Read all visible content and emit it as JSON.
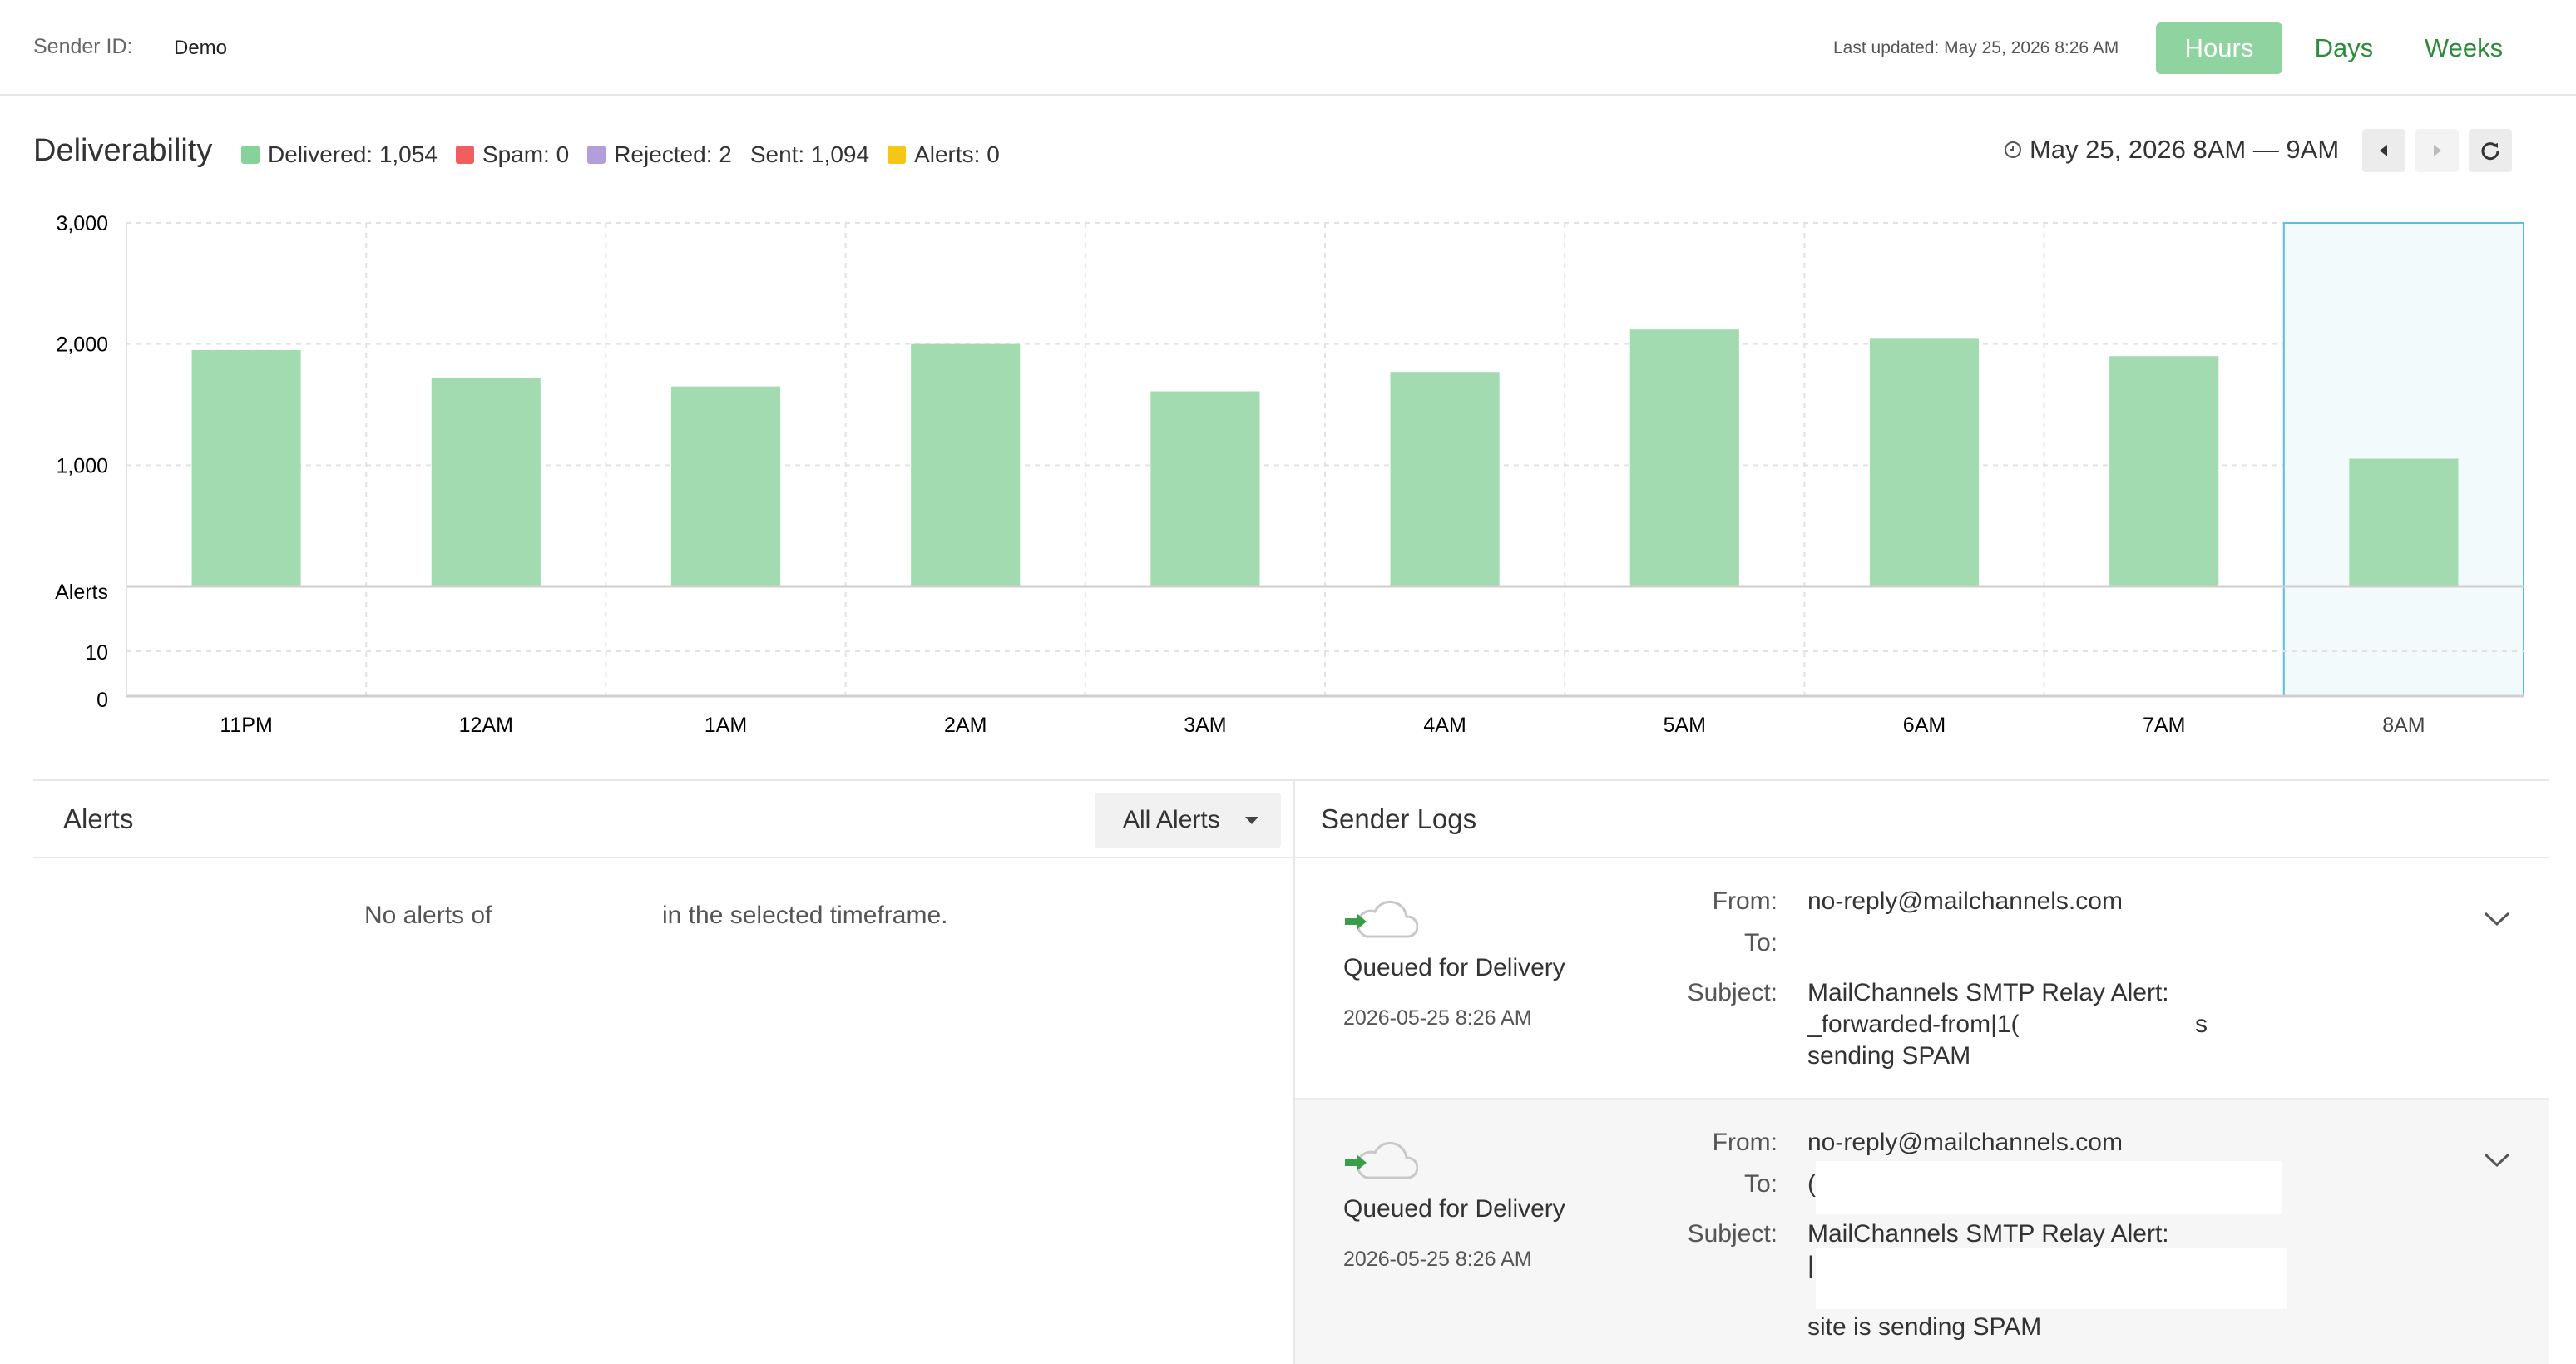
{
  "header": {
    "sender_label": "Sender ID:",
    "sender_value": "Demo",
    "last_updated": "Last updated: May 25, 2026 8:26 AM",
    "range_buttons": [
      "Hours",
      "Days",
      "Weeks"
    ],
    "active_range": "Hours"
  },
  "deliverability": {
    "title": "Deliverability",
    "legend": [
      {
        "label": "Delivered: 1,054",
        "color": "#86d29a"
      },
      {
        "label": "Spam: 0",
        "color": "#ef5f5f"
      },
      {
        "label": "Rejected: 2",
        "color": "#b39ddb"
      },
      {
        "label": "Sent: 1,094",
        "color": ""
      },
      {
        "label": "Alerts: 0",
        "color": "#f5c518"
      }
    ],
    "timeframe": "May 25, 2026 8AM — 9AM",
    "icons": {
      "clock": "clock-icon",
      "prev": "caret-left-icon",
      "next": "caret-right-icon",
      "refresh": "refresh-icon"
    }
  },
  "chart_data": {
    "type": "bar",
    "categories": [
      "11PM",
      "12AM",
      "1AM",
      "2AM",
      "3AM",
      "4AM",
      "5AM",
      "6AM",
      "7AM",
      "8AM"
    ],
    "values": [
      1950,
      1720,
      1650,
      2000,
      1610,
      1770,
      2120,
      2050,
      1900,
      1054
    ],
    "ylim": [
      0,
      3000
    ],
    "yticks": [
      "3,000",
      "2,000",
      "1,000"
    ],
    "alerts_axis_label": "Alerts",
    "alerts_ticks": [
      "10",
      "0"
    ],
    "alerts_values": [
      0,
      0,
      0,
      0,
      0,
      0,
      0,
      0,
      0,
      0
    ],
    "selected_category": "8AM",
    "bar_color": "#a3dbb0",
    "grid": true
  },
  "alerts": {
    "title": "Alerts",
    "filter_label": "All Alerts",
    "empty_prefix": "No alerts of",
    "empty_suffix": "in the selected timeframe."
  },
  "sender_logs": {
    "title": "Sender Logs",
    "labels": {
      "from": "From:",
      "to": "To:",
      "subject": "Subject:"
    },
    "entries": [
      {
        "status": "Queued for Delivery",
        "date": "2026-05-25 8:26 AM",
        "from": "no-reply@mailchannels.com",
        "to": "",
        "subject_lines": [
          "MailChannels SMTP Relay Alert:",
          "_forwarded-from|1(",
          "s",
          "sending SPAM"
        ]
      },
      {
        "status": "Queued for Delivery",
        "date": "2026-05-25 8:26 AM",
        "from": "no-reply@mailchannels.com",
        "to": "(",
        "subject_lines": [
          "MailChannels SMTP Relay Alert:",
          "|",
          "site is sending SPAM"
        ]
      }
    ]
  }
}
